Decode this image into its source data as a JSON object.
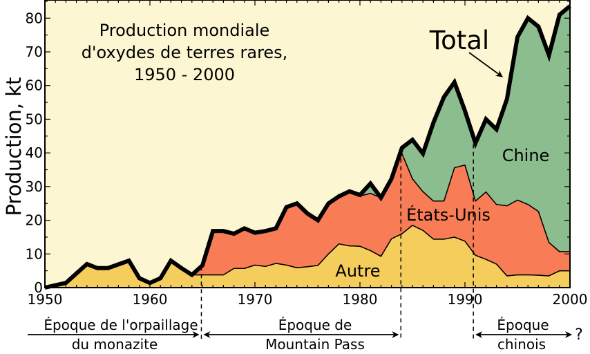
{
  "chart_data": {
    "type": "area",
    "stacked": true,
    "title": [
      "Production mondiale",
      "d'oxydes de terres rares,",
      "1950 - 2000"
    ],
    "xlabel": "",
    "ylabel": "Production, kt",
    "xlim": [
      1950,
      2000
    ],
    "ylim": [
      0,
      85.4
    ],
    "x_ticks": [
      1950,
      1960,
      1970,
      1980,
      1990,
      2000
    ],
    "x_tick_labels": [
      "1950",
      "1960",
      "1970",
      "1980",
      "1990",
      "2000"
    ],
    "y_ticks": [
      0,
      10,
      20,
      30,
      40,
      50,
      60,
      70,
      80
    ],
    "y_tick_labels": [
      "0",
      "10",
      "20",
      "30",
      "40",
      "50",
      "60",
      "70",
      "80"
    ],
    "grid": false,
    "x": [
      1950,
      1951,
      1952,
      1953,
      1954,
      1955,
      1956,
      1957,
      1958,
      1959,
      1960,
      1961,
      1962,
      1963,
      1964,
      1965,
      1966,
      1967,
      1968,
      1969,
      1970,
      1971,
      1972,
      1973,
      1974,
      1975,
      1976,
      1977,
      1978,
      1979,
      1980,
      1981,
      1982,
      1983,
      1984,
      1985,
      1986,
      1987,
      1988,
      1989,
      1990,
      1991,
      1992,
      1993,
      1994,
      1995,
      1996,
      1997,
      1998,
      1999,
      2000
    ],
    "series": [
      {
        "name": "Autre",
        "color": "#f5cd5c",
        "values": [
          0,
          0.7,
          1.4,
          4.2,
          7,
          5.8,
          5.8,
          6.9,
          8,
          2.8,
          1.4,
          2.8,
          8,
          5.8,
          3.8,
          3.8,
          3.8,
          3.8,
          5.7,
          5.7,
          6.7,
          6.3,
          7.2,
          6.7,
          5.9,
          6.2,
          6.6,
          10,
          13,
          12.4,
          12.3,
          11,
          9.3,
          14.5,
          16,
          18.5,
          17,
          14.4,
          14.4,
          15,
          13.8,
          9.6,
          8.4,
          7,
          3.5,
          3.8,
          3.8,
          3.7,
          3.5,
          5,
          5
        ]
      },
      {
        "name": "États-Unis",
        "color": "#f87c56",
        "values": [
          0,
          0,
          0,
          0,
          0,
          0,
          0,
          0,
          0,
          0,
          0,
          0,
          0,
          0,
          0,
          2.8,
          13,
          13,
          10.3,
          11.9,
          9.6,
          10.5,
          10.4,
          17.2,
          19.1,
          15.8,
          13.4,
          15,
          14.1,
          16.2,
          14.9,
          17,
          17.4,
          17.8,
          23.8,
          13.8,
          11.5,
          11.3,
          11.3,
          20.6,
          22.6,
          16.1,
          20,
          17.7,
          20.8,
          22.2,
          20.9,
          18.9,
          9.9,
          5.7,
          5.7
        ]
      },
      {
        "name": "Chine",
        "color": "#8bbd8e",
        "values": [
          0,
          0,
          0,
          0,
          0,
          0,
          0,
          0,
          0,
          0,
          0,
          0,
          0,
          0,
          0,
          0,
          0,
          0,
          0,
          0,
          0,
          0,
          0,
          0,
          0,
          0,
          0,
          0,
          0,
          0,
          0.3,
          2.9,
          0,
          0,
          1.7,
          11.6,
          11.3,
          23.3,
          30.9,
          25.4,
          16.1,
          17.2,
          21.6,
          22.3,
          31.7,
          48.4,
          55.3,
          54.9,
          55.6,
          70.3,
          72.9
        ]
      }
    ],
    "total_label": "Total",
    "annotations": {
      "chine": "Chine",
      "etats_unis": "États-Unis",
      "autre": "Autre"
    },
    "era_boundaries": [
      1964.9,
      1983.9,
      1990.8
    ],
    "eras": [
      {
        "line1": "Époque de l'orpaillage",
        "line2": "du monazite"
      },
      {
        "line1": "Époque de",
        "line2": "Mountain Pass"
      },
      {
        "line1": "Époque",
        "line2": "chinois"
      }
    ],
    "future_label": "?",
    "colors": {
      "background": "#fdf6d2",
      "total_line": "#000000"
    }
  }
}
